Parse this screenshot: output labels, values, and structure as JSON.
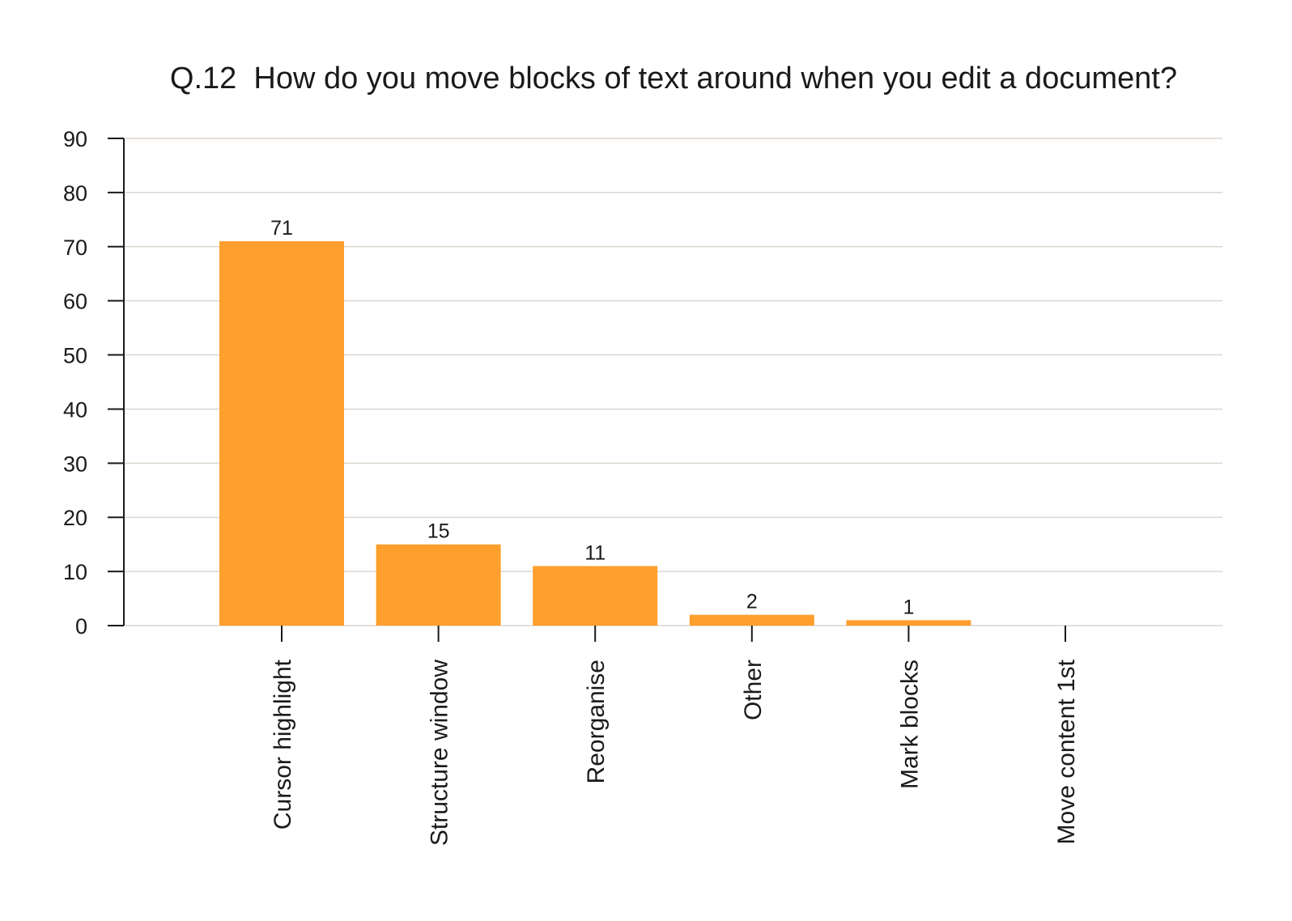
{
  "chart_data": {
    "type": "bar",
    "title": "Q.12  How do you move blocks of text around when you edit a document?",
    "xlabel": "",
    "ylabel": "",
    "categories": [
      "Cursor highlight",
      "Structure window",
      "Reorganise",
      "Other",
      "Mark blocks",
      "Move content 1st"
    ],
    "values": [
      71,
      15,
      11,
      2,
      1,
      0
    ],
    "data_labels": [
      "71",
      "15",
      "11",
      "2",
      "1",
      ""
    ],
    "ylim": [
      0,
      90
    ],
    "yticks": [
      0,
      10,
      20,
      30,
      40,
      50,
      60,
      70,
      80,
      90
    ],
    "grid": true,
    "legend": "none",
    "colors": {
      "bar": "#FF9F2D",
      "grid": "#ddd6cf",
      "axis": "#1a1a1a",
      "text": "#1a1a1a"
    }
  }
}
